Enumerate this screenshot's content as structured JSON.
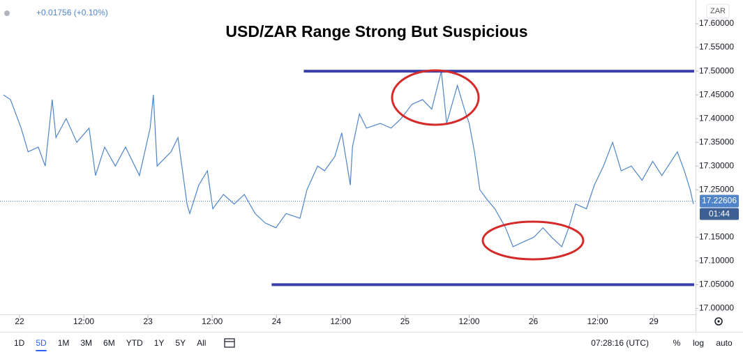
{
  "chart_data": {
    "type": "line",
    "title": "USD/ZAR Range Strong But Suspicious",
    "change": "+0.01756 (+0.10%)",
    "symbol": "ZAR",
    "last_price": 17.22606,
    "countdown": "01:44",
    "xlim": [
      -3.65,
      126.3
    ],
    "ylim": [
      16.98,
      17.65
    ],
    "xticks": [
      {
        "value": 0,
        "label": "22"
      },
      {
        "value": 12,
        "label": "12:00"
      },
      {
        "value": 24,
        "label": "23"
      },
      {
        "value": 36,
        "label": "12:00"
      },
      {
        "value": 48,
        "label": "24"
      },
      {
        "value": 60,
        "label": "12:00"
      },
      {
        "value": 72,
        "label": "25"
      },
      {
        "value": 84,
        "label": "12:00"
      },
      {
        "value": 96,
        "label": "26"
      },
      {
        "value": 108,
        "label": "12:00"
      },
      {
        "value": 118.5,
        "label": "29"
      }
    ],
    "yticks": [
      {
        "value": 17.0,
        "label": "17.00000"
      },
      {
        "value": 17.05,
        "label": "17.05000"
      },
      {
        "value": 17.1,
        "label": "17.10000"
      },
      {
        "value": 17.15,
        "label": "17.15000"
      },
      {
        "value": 17.25,
        "label": "17.25000"
      },
      {
        "value": 17.3,
        "label": "17.30000"
      },
      {
        "value": 17.35,
        "label": "17.35000"
      },
      {
        "value": 17.4,
        "label": "17.40000"
      },
      {
        "value": 17.45,
        "label": "17.45000"
      },
      {
        "value": 17.5,
        "label": "17.50000"
      },
      {
        "value": 17.55,
        "label": "17.55000"
      },
      {
        "value": 17.6,
        "label": "17.60000"
      }
    ],
    "levels": [
      {
        "value": 17.5,
        "x_start": 53.1
      },
      {
        "value": 17.05,
        "x_start": 47.1
      }
    ],
    "series": [
      {
        "name": "USD/ZAR",
        "color": "#4f84c8",
        "x": [
          -3,
          -1.7,
          0.3,
          1.6,
          3.5,
          4.8,
          6.1,
          6.8,
          8.7,
          10.7,
          13.0,
          14.2,
          15.9,
          17.9,
          19.8,
          22.4,
          24.4,
          25.0,
          25.7,
          28.3,
          29.6,
          31.3,
          31.8,
          33.5,
          35.1,
          36.1,
          38.1,
          40.1,
          42.0,
          44.0,
          45.9,
          47.9,
          49.8,
          52.4,
          53.7,
          55.7,
          57.0,
          58.9,
          60.2,
          61.8,
          62.2,
          63.5,
          64.8,
          67.4,
          69.4,
          71.3,
          73.3,
          75.3,
          77.0,
          78.8,
          79.8,
          81.8,
          83.1,
          84.0,
          85.0,
          86.0,
          87.3,
          88.8,
          90.8,
          92.2,
          94.1,
          96.1,
          97.8,
          99.4,
          101.3,
          102.6,
          103.9,
          105.9,
          107.4,
          109.1,
          110.8,
          112.4,
          114.3,
          116.3,
          118.3,
          120.0,
          122.9,
          124.2,
          125.3,
          125.9
        ],
        "values": [
          17.45,
          17.44,
          17.38,
          17.33,
          17.34,
          17.3,
          17.44,
          17.36,
          17.4,
          17.35,
          17.38,
          17.28,
          17.34,
          17.3,
          17.34,
          17.28,
          17.38,
          17.45,
          17.3,
          17.33,
          17.36,
          17.22,
          17.2,
          17.26,
          17.29,
          17.21,
          17.24,
          17.22,
          17.24,
          17.2,
          17.18,
          17.17,
          17.2,
          17.19,
          17.25,
          17.3,
          17.29,
          17.32,
          17.37,
          17.26,
          17.34,
          17.41,
          17.38,
          17.39,
          17.38,
          17.4,
          17.43,
          17.44,
          17.42,
          17.5,
          17.39,
          17.47,
          17.42,
          17.39,
          17.33,
          17.25,
          17.23,
          17.21,
          17.17,
          17.13,
          17.14,
          17.15,
          17.17,
          17.15,
          17.13,
          17.17,
          17.22,
          17.21,
          17.26,
          17.3,
          17.35,
          17.29,
          17.3,
          17.27,
          17.31,
          17.28,
          17.33,
          17.29,
          17.25,
          17.22
        ]
      }
    ]
  },
  "toolbar": {
    "intervals": [
      "1D",
      "5D",
      "1M",
      "3M",
      "6M",
      "YTD",
      "1Y",
      "5Y",
      "All"
    ],
    "selected": 1,
    "clock": "07:28:16 (UTC)",
    "options": [
      "%",
      "log",
      "auto"
    ]
  }
}
